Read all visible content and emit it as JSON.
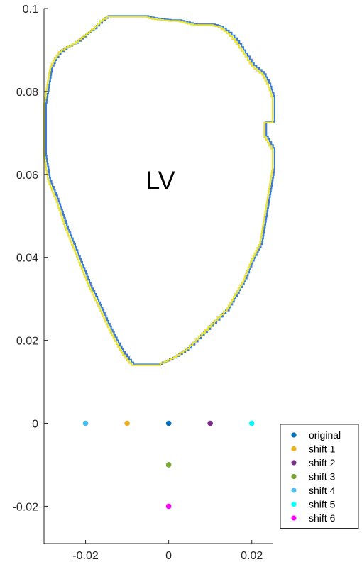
{
  "chart_data": {
    "type": "scatter",
    "xlim": [
      -0.03,
      0.025
    ],
    "ylim": [
      -0.029,
      0.1
    ],
    "x_ticks": [
      {
        "value": -0.02,
        "label": "-0.02"
      },
      {
        "value": 0,
        "label": "0"
      },
      {
        "value": 0.02,
        "label": "0.02"
      }
    ],
    "y_ticks": [
      {
        "value": -0.02,
        "label": "-0.02"
      },
      {
        "value": 0,
        "label": "0"
      },
      {
        "value": 0.02,
        "label": "0.02"
      },
      {
        "value": 0.04,
        "label": "0.04"
      },
      {
        "value": 0.06,
        "label": "0.06"
      },
      {
        "value": 0.08,
        "label": "0.08"
      },
      {
        "value": 0.1,
        "label": "0.1"
      }
    ],
    "grid": false,
    "legend_position": "bottom-right",
    "annotations": [
      {
        "text": "LV",
        "x": -0.002,
        "y": 0.0585
      }
    ],
    "contours": [
      {
        "name": "contour-outer",
        "color": "#3a7bd5",
        "offset": [
          0.0005,
          0.0002
        ]
      },
      {
        "name": "contour-inner",
        "color": "#e8e23a",
        "offset": [
          0,
          0
        ]
      }
    ],
    "contour_outline": [
      [
        -0.03,
        0.065
      ],
      [
        -0.03,
        0.07
      ],
      [
        -0.03,
        0.077
      ],
      [
        -0.0295,
        0.08
      ],
      [
        -0.029,
        0.083
      ],
      [
        -0.0285,
        0.086
      ],
      [
        -0.0275,
        0.088
      ],
      [
        -0.0265,
        0.0895
      ],
      [
        -0.025,
        0.0905
      ],
      [
        -0.023,
        0.0915
      ],
      [
        -0.021,
        0.093
      ],
      [
        -0.0185,
        0.095
      ],
      [
        -0.0165,
        0.097
      ],
      [
        -0.015,
        0.098
      ],
      [
        -0.012,
        0.098
      ],
      [
        -0.009,
        0.098
      ],
      [
        -0.006,
        0.098
      ],
      [
        -0.004,
        0.0975
      ],
      [
        0.0,
        0.097
      ],
      [
        0.002,
        0.097
      ],
      [
        0.004,
        0.0965
      ],
      [
        0.006,
        0.096
      ],
      [
        0.01,
        0.096
      ],
      [
        0.012,
        0.0955
      ],
      [
        0.014,
        0.094
      ],
      [
        0.016,
        0.092
      ],
      [
        0.018,
        0.089
      ],
      [
        0.02,
        0.086
      ],
      [
        0.0225,
        0.084
      ],
      [
        0.024,
        0.081
      ],
      [
        0.025,
        0.078
      ],
      [
        0.025,
        0.0725
      ],
      [
        0.023,
        0.0725
      ],
      [
        0.023,
        0.069
      ],
      [
        0.025,
        0.0655
      ],
      [
        0.025,
        0.061
      ],
      [
        0.024,
        0.055
      ],
      [
        0.023,
        0.049
      ],
      [
        0.022,
        0.043
      ],
      [
        0.02,
        0.039
      ],
      [
        0.018,
        0.034
      ],
      [
        0.016,
        0.0305
      ],
      [
        0.014,
        0.027
      ],
      [
        0.011,
        0.024
      ],
      [
        0.008,
        0.021
      ],
      [
        0.005,
        0.018
      ],
      [
        0.002,
        0.016
      ],
      [
        -0.001,
        0.0145
      ],
      [
        -0.002,
        0.014
      ],
      [
        -0.005,
        0.014
      ],
      [
        -0.008,
        0.014
      ],
      [
        -0.009,
        0.0145
      ],
      [
        -0.011,
        0.017
      ],
      [
        -0.013,
        0.0205
      ],
      [
        -0.015,
        0.0245
      ],
      [
        -0.017,
        0.029
      ],
      [
        -0.019,
        0.033
      ],
      [
        -0.021,
        0.038
      ],
      [
        -0.023,
        0.043
      ],
      [
        -0.025,
        0.048
      ],
      [
        -0.027,
        0.054
      ],
      [
        -0.029,
        0.059
      ],
      [
        -0.03,
        0.065
      ]
    ],
    "series": [
      {
        "name": "original",
        "color": "#0072bd",
        "x": [
          0
        ],
        "y": [
          0
        ]
      },
      {
        "name": "shift 1",
        "color": "#edb120",
        "x": [
          -0.01
        ],
        "y": [
          0
        ]
      },
      {
        "name": "shift 2",
        "color": "#7e2f8e",
        "x": [
          0.01
        ],
        "y": [
          0
        ]
      },
      {
        "name": "shift 3",
        "color": "#77ac30",
        "x": [
          0
        ],
        "y": [
          -0.01
        ]
      },
      {
        "name": "shift 4",
        "color": "#4dbeee",
        "x": [
          -0.02
        ],
        "y": [
          0
        ]
      },
      {
        "name": "shift 5",
        "color": "#00ffff",
        "x": [
          0.02
        ],
        "y": [
          0
        ]
      },
      {
        "name": "shift 6",
        "color": "#ff00ff",
        "x": [
          0
        ],
        "y": [
          -0.02
        ]
      }
    ]
  }
}
